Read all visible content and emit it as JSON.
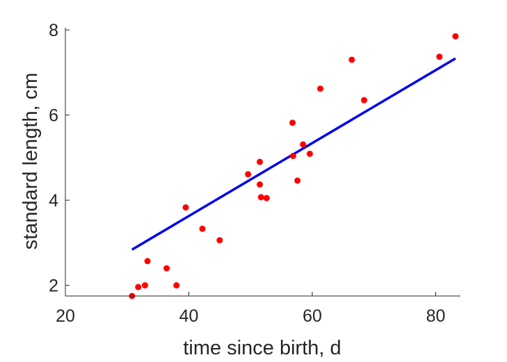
{
  "chart_data": {
    "type": "scatter",
    "title": "",
    "xlabel": "time since birth, d",
    "ylabel": "standard length, cm",
    "xlim": [
      20,
      84
    ],
    "ylim": [
      1.75,
      8.05
    ],
    "xticks": [
      20,
      40,
      60,
      80
    ],
    "yticks": [
      2,
      4,
      6,
      8
    ],
    "xtick_labels": [
      "20",
      "40",
      "60",
      "80"
    ],
    "ytick_labels": [
      "2",
      "4",
      "6",
      "8"
    ],
    "grid": false,
    "series": [
      {
        "type": "scatter",
        "color": "#ff0000",
        "points": [
          {
            "x": 30.8,
            "y": 1.75
          },
          {
            "x": 31.8,
            "y": 1.96
          },
          {
            "x": 32.9,
            "y": 2.0
          },
          {
            "x": 33.3,
            "y": 2.57
          },
          {
            "x": 36.4,
            "y": 2.4
          },
          {
            "x": 38.0,
            "y": 2.0
          },
          {
            "x": 39.5,
            "y": 3.83
          },
          {
            "x": 42.2,
            "y": 3.33
          },
          {
            "x": 45.0,
            "y": 3.06
          },
          {
            "x": 49.6,
            "y": 4.61
          },
          {
            "x": 51.5,
            "y": 4.9
          },
          {
            "x": 51.5,
            "y": 4.37
          },
          {
            "x": 51.7,
            "y": 4.07
          },
          {
            "x": 52.6,
            "y": 4.05
          },
          {
            "x": 56.8,
            "y": 5.82
          },
          {
            "x": 56.9,
            "y": 5.04
          },
          {
            "x": 57.6,
            "y": 4.46
          },
          {
            "x": 58.5,
            "y": 5.31
          },
          {
            "x": 59.6,
            "y": 5.09
          },
          {
            "x": 61.3,
            "y": 6.62
          },
          {
            "x": 66.4,
            "y": 7.3
          },
          {
            "x": 68.4,
            "y": 6.35
          },
          {
            "x": 80.6,
            "y": 7.37
          },
          {
            "x": 83.2,
            "y": 7.85
          }
        ]
      },
      {
        "type": "line",
        "color": "#0000ee",
        "points": [
          {
            "x": 30.8,
            "y": 2.84
          },
          {
            "x": 83.2,
            "y": 7.33
          }
        ]
      }
    ]
  }
}
